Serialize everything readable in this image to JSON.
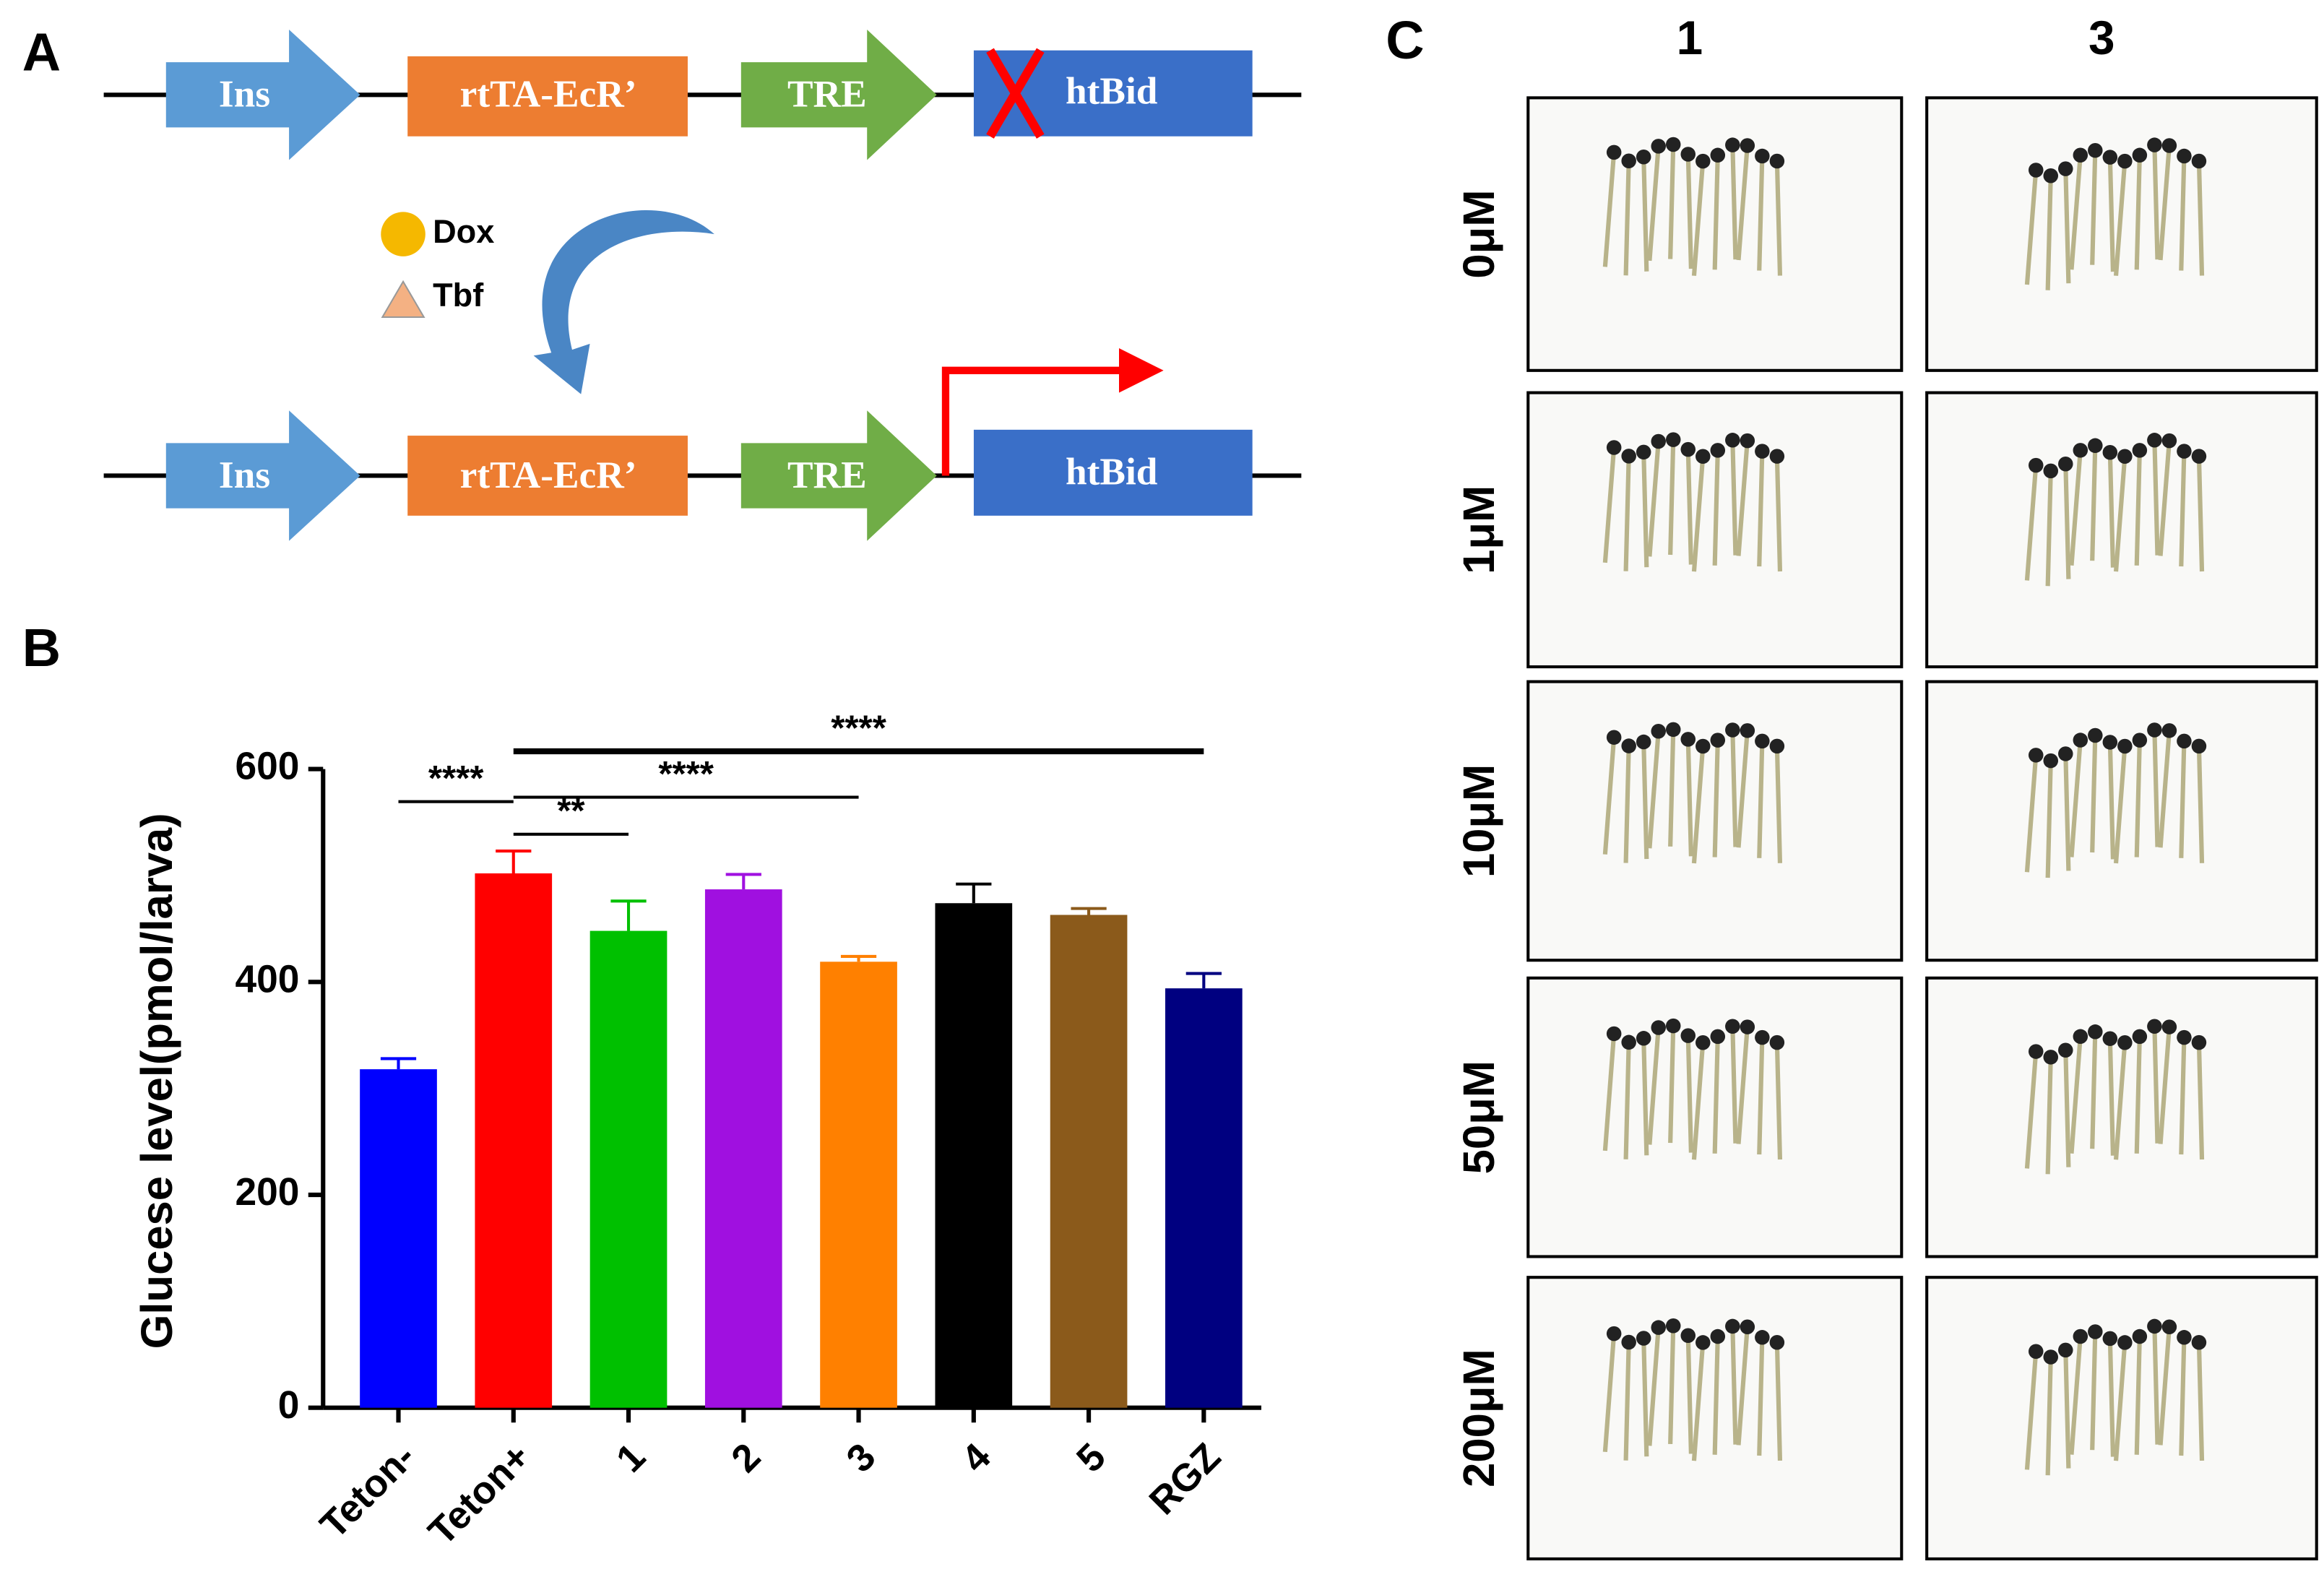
{
  "panel_labels": [
    "A",
    "B",
    "C"
  ],
  "diagram": {
    "elements": [
      "Ins",
      "rtTA-EcR’",
      "TRE",
      "htBid"
    ],
    "inducers": [
      "Dox",
      "Tbf"
    ]
  },
  "images": {
    "columns": [
      "1",
      "3"
    ],
    "rows": [
      "0μM",
      "1μM",
      "10μM",
      "50μM",
      "200μM"
    ]
  },
  "chart_data": {
    "type": "bar",
    "y_label": "Glucese level(pmol/larva)",
    "categories": [
      "Teton-",
      "Teton+",
      "1",
      "2",
      "3",
      "4",
      "5",
      "RGZ"
    ],
    "values": [
      318,
      502,
      448,
      487,
      419,
      474,
      463,
      394
    ],
    "errors": [
      10,
      21,
      28,
      14,
      5,
      18,
      6,
      14
    ],
    "colors": [
      "#0000ff",
      "#ff0000",
      "#00c000",
      "#a010e0",
      "#ff8000",
      "#000000",
      "#8b5a1b",
      "#000080"
    ],
    "ylim": [
      0,
      600
    ],
    "yticks": [
      0,
      200,
      400,
      600
    ],
    "annotations": [
      {
        "label": "****",
        "pair": [
          "Teton-",
          "Teton+"
        ]
      },
      {
        "label": "**",
        "pair": [
          "Teton+",
          "1"
        ]
      },
      {
        "label": "****",
        "pair": [
          "Teton+",
          "3"
        ]
      },
      {
        "label": "****",
        "pair": [
          "Teton+",
          "RGZ"
        ]
      }
    ]
  }
}
